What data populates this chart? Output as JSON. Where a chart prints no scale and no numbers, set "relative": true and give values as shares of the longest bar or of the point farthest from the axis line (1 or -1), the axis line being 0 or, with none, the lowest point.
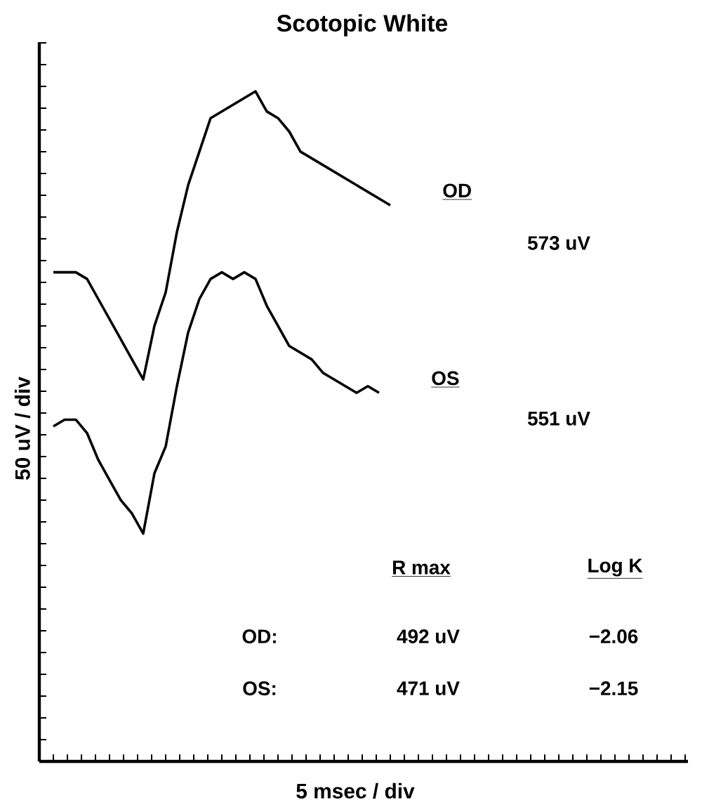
{
  "chart_data": {
    "type": "line",
    "title": "Scotopic White",
    "xlabel": "5 msec / div",
    "ylabel": "50 uV / div",
    "relative": true,
    "categories": [
      null,
      null,
      null,
      null,
      null,
      null,
      null,
      null,
      null,
      null,
      null,
      null,
      null,
      null,
      null,
      null,
      null,
      null,
      null,
      null,
      null,
      null,
      null,
      null,
      null,
      null,
      null,
      null,
      null,
      null,
      null
    ],
    "series": [
      {
        "name": "OD",
        "color": "#000000",
        "values": [
          0.73,
          0.73,
          0.73,
          0.72,
          0.69,
          0.66,
          0.63,
          0.6,
          0.57,
          0.65,
          0.7,
          0.79,
          0.86,
          0.91,
          0.96,
          0.97,
          0.98,
          0.99,
          1.0,
          0.97,
          0.96,
          0.94,
          0.91,
          0.9,
          0.89,
          0.88,
          0.87,
          0.86,
          0.85,
          0.84,
          0.83
        ]
      },
      {
        "name": "OS",
        "color": "#000000",
        "values": [
          0.5,
          0.51,
          0.51,
          0.49,
          0.45,
          0.42,
          0.39,
          0.37,
          0.34,
          0.43,
          0.47,
          0.56,
          0.64,
          0.69,
          0.72,
          0.73,
          0.72,
          0.73,
          0.72,
          0.68,
          0.65,
          0.62,
          0.61,
          0.6,
          0.58,
          0.57,
          0.56,
          0.55,
          0.56,
          0.55,
          null
        ]
      }
    ],
    "annotations": [
      "573 uV",
      "551 uV",
      "R max",
      "Log K",
      "OD:",
      "492 uV",
      "−2.06",
      "OS:",
      "471 uV",
      "−2.15"
    ]
  }
}
